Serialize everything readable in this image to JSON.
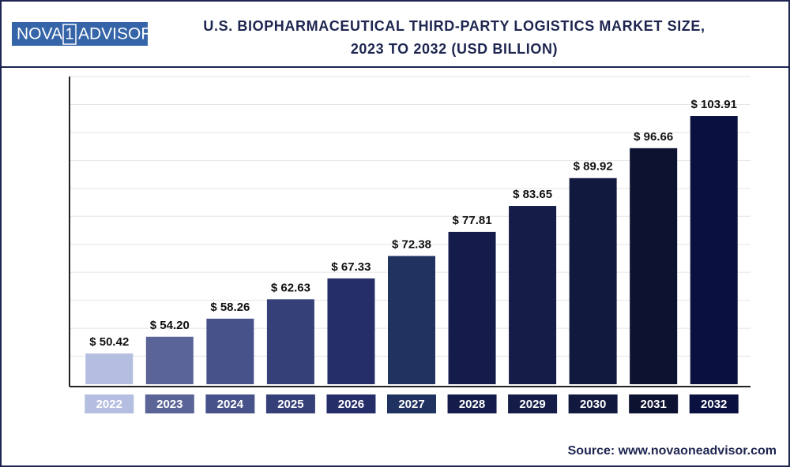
{
  "logo": {
    "left": "NOVA",
    "mid": "1",
    "right": "ADVISOR"
  },
  "source": "Source: www.novaoneadvisor.com",
  "chart_data": {
    "type": "bar",
    "title": [
      "U.S. BIOPHARMACEUTICAL THIRD-PARTY LOGISTICS MARKET SIZE,",
      "2023 TO 2032 (USD BILLION)"
    ],
    "categories": [
      "2022",
      "2023",
      "2024",
      "2025",
      "2026",
      "2027",
      "2028",
      "2029",
      "2030",
      "2031",
      "2032"
    ],
    "values": [
      50.42,
      54.2,
      58.26,
      62.63,
      67.33,
      72.38,
      77.81,
      83.65,
      89.92,
      96.66,
      103.91
    ],
    "value_labels": [
      "$ 50.42",
      "$ 54.20",
      "$ 58.26",
      "$ 62.63",
      "$ 67.33",
      "$ 72.38",
      "$ 77.81",
      "$ 83.65",
      "$ 89.92",
      "$ 96.66",
      "$ 103.91"
    ],
    "colors": [
      "#b4bee0",
      "#5a6496",
      "#48528a",
      "#353f78",
      "#262e6a",
      "#1f3260",
      "#141c4c",
      "#151c48",
      "#12193e",
      "#0d1230",
      "#0a1140"
    ],
    "ylim": [
      43.5,
      112.8
    ],
    "grid": true
  }
}
